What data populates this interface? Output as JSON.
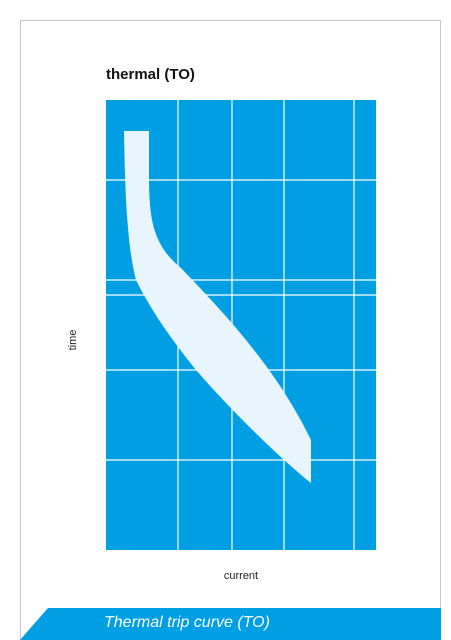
{
  "figure": {
    "title": "thermal (TO)",
    "caption": "Thermal trip curve (TO)",
    "accent_color": "#009fe3",
    "band_color": "#e8f5fc"
  },
  "chart_data": {
    "type": "area",
    "title": "thermal (TO)",
    "xlabel": "current",
    "ylabel": "time",
    "grid": true,
    "tick_labels_shown": false,
    "description_of_series": "shaded trip band (upper and lower boundary)",
    "x_relative": [
      0.07,
      0.16,
      0.25,
      0.4,
      0.55,
      0.7,
      0.76
    ],
    "series": [
      {
        "role": "band-right-edge",
        "points": [
          [
            0.16,
            0.93
          ],
          [
            0.165,
            0.7
          ],
          [
            0.19,
            0.6
          ],
          [
            0.27,
            0.48
          ],
          [
            0.42,
            0.36
          ],
          [
            0.6,
            0.25
          ],
          [
            0.76,
            0.16
          ]
        ]
      },
      {
        "role": "band-left-edge",
        "points": [
          [
            0.07,
            0.93
          ],
          [
            0.075,
            0.7
          ],
          [
            0.1,
            0.52
          ],
          [
            0.17,
            0.38
          ],
          [
            0.3,
            0.25
          ],
          [
            0.5,
            0.13
          ],
          [
            0.76,
            0.03
          ]
        ]
      }
    ]
  }
}
